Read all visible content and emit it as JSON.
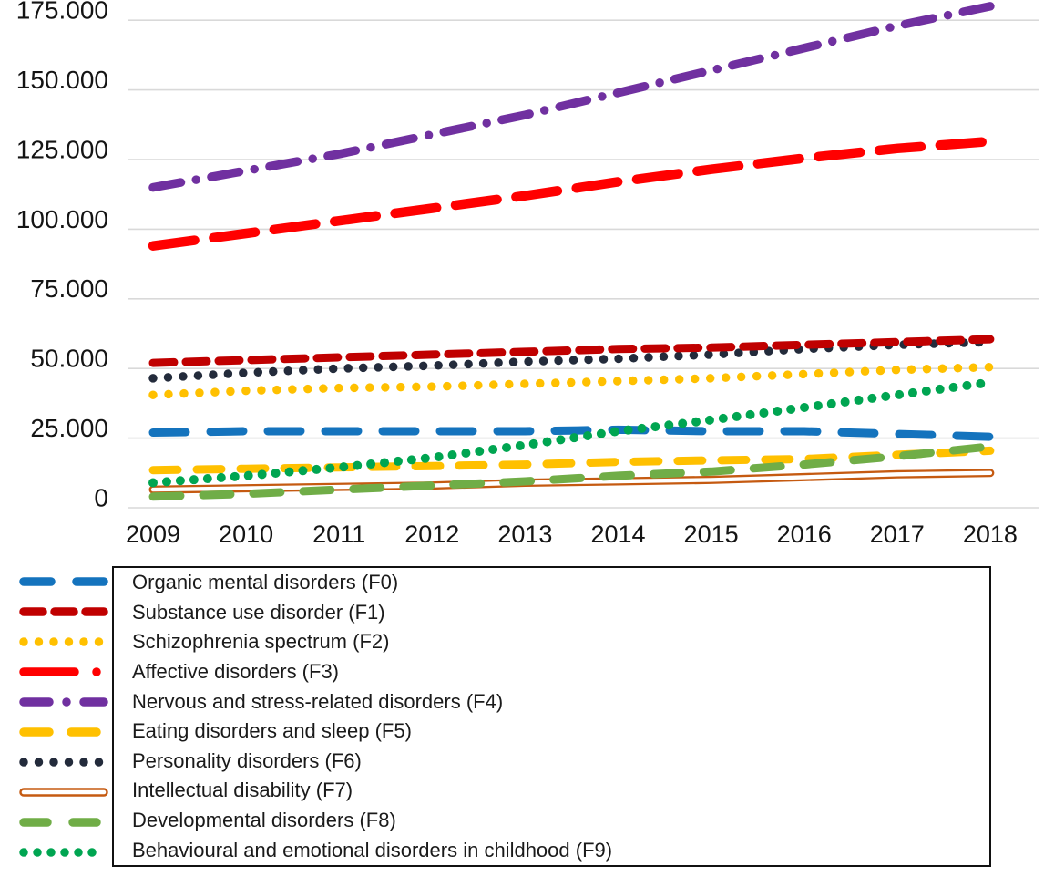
{
  "chart_data": {
    "type": "line",
    "title": "",
    "xlabel": "",
    "ylabel": "",
    "x": [
      2009,
      2010,
      2011,
      2012,
      2013,
      2014,
      2015,
      2016,
      2017,
      2018
    ],
    "x_tick_labels": [
      "2009",
      "2010",
      "2011",
      "2012",
      "2013",
      "2014",
      "2015",
      "2016",
      "2017",
      "2018"
    ],
    "y_ticks": [
      {
        "label": "175.000",
        "value": 175000
      },
      {
        "label": "150.000",
        "value": 150000
      },
      {
        "label": "125.000",
        "value": 125000
      },
      {
        "label": "100.000",
        "value": 100000
      },
      {
        "label": "75.000",
        "value": 75000
      },
      {
        "label": "50.000",
        "value": 50000
      },
      {
        "label": "25.000",
        "value": 25000
      },
      {
        "label": "0",
        "value": 0
      }
    ],
    "ylim": [
      0,
      190000
    ],
    "grid": true,
    "gridline_color": "#d9d9d9",
    "legend_position": "bottom",
    "series": [
      {
        "id": "F0",
        "name": "Organic mental disorders (F0)",
        "color": "#1473BD",
        "line_style": "dashed",
        "values": [
          27000,
          27500,
          27500,
          27500,
          27500,
          28000,
          27500,
          27500,
          26500,
          25500
        ]
      },
      {
        "id": "F1",
        "name": "Substance use disorder (F1)",
        "color": "#C00000",
        "line_style": "dashed-short",
        "values": [
          52000,
          53000,
          54000,
          55000,
          56000,
          57000,
          57500,
          58500,
          59500,
          60500
        ]
      },
      {
        "id": "F2",
        "name": "Schizophrenia spectrum (F2)",
        "color": "#FFC000",
        "line_style": "dotted",
        "values": [
          40500,
          42000,
          43000,
          43500,
          44500,
          45500,
          46500,
          48000,
          49500,
          50500
        ]
      },
      {
        "id": "F3",
        "name": "Affective disorders (F3)",
        "color": "#FF0000",
        "line_style": "long-dash",
        "values": [
          94000,
          98500,
          103000,
          107500,
          112000,
          117000,
          121500,
          125500,
          129000,
          131500
        ]
      },
      {
        "id": "F4",
        "name": "Nervous and stress-related disorders (F4)",
        "color": "#7030A0",
        "line_style": "dash-dot",
        "values": [
          115000,
          121000,
          127000,
          134000,
          141000,
          149000,
          157000,
          165000,
          173000,
          180000
        ]
      },
      {
        "id": "F5",
        "name": "Eating disorders and sleep (F5)",
        "color": "#FFC000",
        "line_style": "dashed",
        "values": [
          13500,
          14000,
          14500,
          15000,
          15500,
          16500,
          17000,
          17500,
          19000,
          20500
        ]
      },
      {
        "id": "F6",
        "name": "Personality disorders (F6)",
        "color": "#232B3B",
        "line_style": "dotted",
        "values": [
          46500,
          48500,
          50000,
          51000,
          52500,
          53500,
          55000,
          57000,
          58500,
          59500
        ]
      },
      {
        "id": "F7",
        "name": "Intellectual disability (F7)",
        "color": "#C55A11",
        "line_style": "solid-hollow",
        "values": [
          6500,
          7000,
          7500,
          8000,
          9000,
          9500,
          10000,
          11000,
          12000,
          12500
        ]
      },
      {
        "id": "F8",
        "name": "Developmental disorders (F8)",
        "color": "#70AD47",
        "line_style": "dashed",
        "values": [
          4000,
          5000,
          6500,
          8000,
          9500,
          11500,
          13000,
          15500,
          18500,
          22000
        ]
      },
      {
        "id": "F9",
        "name": "Behavioural and emotional disorders in childhood (F9)",
        "color": "#00A551",
        "line_style": "dotted",
        "values": [
          9000,
          11500,
          14500,
          18000,
          22500,
          27500,
          31500,
          36000,
          40500,
          45000
        ]
      }
    ]
  }
}
